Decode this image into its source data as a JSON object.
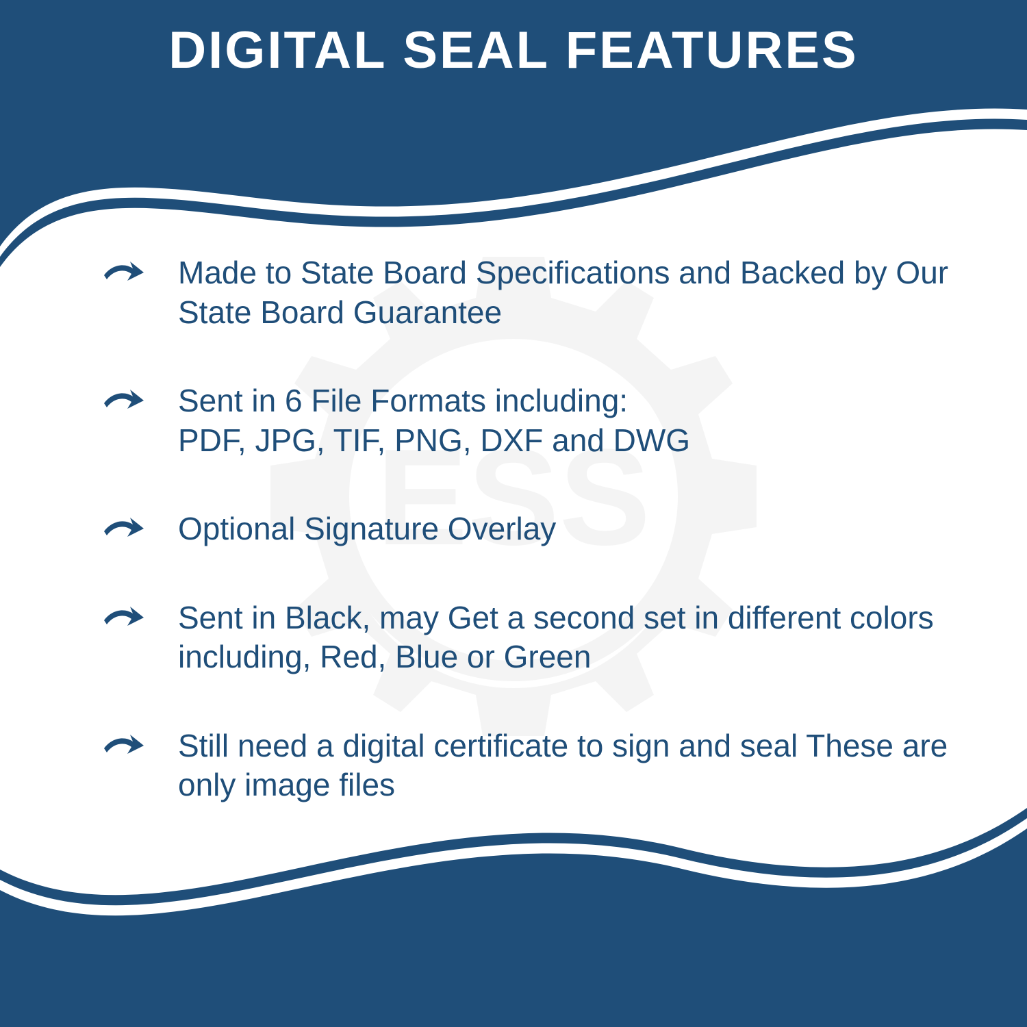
{
  "header": {
    "title": "DIGITAL SEAL FEATURES"
  },
  "colors": {
    "primary": "#1f4e79",
    "white": "#ffffff",
    "watermark": "#888888"
  },
  "watermark_text": "ESS",
  "features": [
    {
      "text": "Made to State Board Specifications and Backed by Our State Board Guarantee"
    },
    {
      "text": "Sent in 6 File Formats including:\nPDF, JPG, TIF, PNG, DXF and DWG"
    },
    {
      "text": "Optional Signature Overlay"
    },
    {
      "text": "Sent in Black, may Get a second set in different colors including, Red, Blue or Green"
    },
    {
      "text": "Still need a digital certificate to sign and seal These are only image files"
    }
  ],
  "typography": {
    "title_fontsize": 76,
    "title_weight": 800,
    "body_fontsize": 46,
    "body_weight": 500
  }
}
